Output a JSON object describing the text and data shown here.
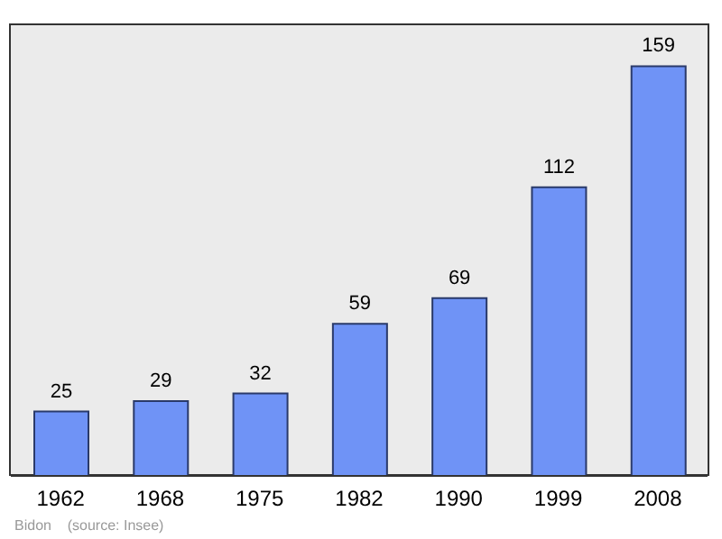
{
  "chart_data": {
    "type": "bar",
    "categories": [
      "1962",
      "1968",
      "1975",
      "1982",
      "1990",
      "1999",
      "2008"
    ],
    "values": [
      25,
      29,
      32,
      59,
      69,
      112,
      159
    ],
    "color": "#6f93f6",
    "data_labels": true,
    "annotations": [
      "Bidon    (source: Insee)"
    ]
  }
}
